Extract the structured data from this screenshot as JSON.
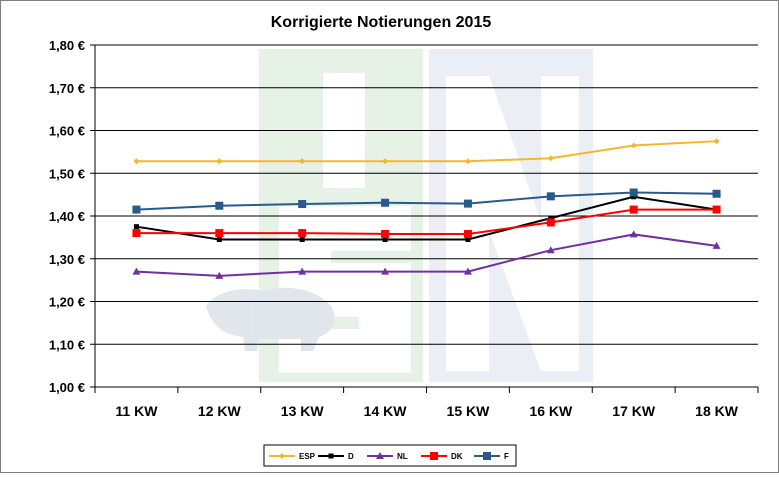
{
  "chart_data": {
    "type": "line",
    "title": "Korrigierte Notierungen 2015",
    "categories": [
      "11 KW",
      "12 KW",
      "13 KW",
      "14 KW",
      "15 KW",
      "16 KW",
      "17 KW",
      "18 KW"
    ],
    "ylim": [
      1.0,
      1.8
    ],
    "yticks": [
      1.0,
      1.1,
      1.2,
      1.3,
      1.4,
      1.5,
      1.6,
      1.7,
      1.8
    ],
    "ytick_labels": [
      "1,00 €",
      "1,10 €",
      "1,20 €",
      "1,30 €",
      "1,40 €",
      "1,50 €",
      "1,60 €",
      "1,70 €",
      "1,80 €"
    ],
    "grid": "horizontal",
    "legend_position": "bottom",
    "series": [
      {
        "name": "ESP",
        "color": "#f5b72a",
        "marker": "diamond",
        "values": [
          1.528,
          1.528,
          1.528,
          1.528,
          1.528,
          1.535,
          1.565,
          1.575
        ]
      },
      {
        "name": "D",
        "color": "#000000",
        "marker": "square-small",
        "values": [
          1.375,
          1.345,
          1.345,
          1.345,
          1.345,
          1.395,
          1.445,
          1.415
        ]
      },
      {
        "name": "NL",
        "color": "#7030a0",
        "marker": "triangle",
        "values": [
          1.27,
          1.26,
          1.27,
          1.27,
          1.27,
          1.32,
          1.357,
          1.33
        ]
      },
      {
        "name": "DK",
        "color": "#ff0000",
        "marker": "square",
        "values": [
          1.36,
          1.36,
          1.36,
          1.358,
          1.358,
          1.385,
          1.415,
          1.415
        ]
      },
      {
        "name": "F",
        "color": "#2a5a8c",
        "marker": "square",
        "values": [
          1.415,
          1.424,
          1.428,
          1.431,
          1.429,
          1.446,
          1.455,
          1.452
        ]
      }
    ]
  }
}
